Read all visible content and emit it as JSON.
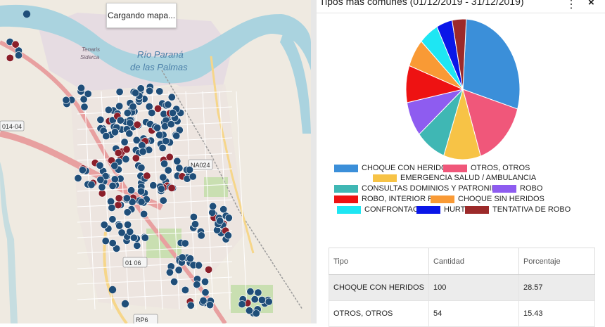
{
  "map": {
    "loading_label": "Cargando mapa...",
    "labels": {
      "river": "Río Paraná",
      "river2": "de las Palmas",
      "factory1": "Tenaris",
      "factory2": "Siderca",
      "road_left": "014-04",
      "road_mid": "NA024",
      "road_low": "01 06",
      "road_bottom": "RP6"
    },
    "colors": {
      "land": "#efeae1",
      "water": "#aad3df",
      "urban": "#e2d6e2",
      "park": "#c9dfb1",
      "road_main": "#e8a0a0",
      "marker_blue": "#1f4e79",
      "marker_red": "#8b1f2a"
    }
  },
  "panel": {
    "title": "Tipos más comunes (01/12/2019 - 31/12/2019)",
    "menu_icon": "kebab-menu-icon",
    "close_icon": "close-icon"
  },
  "chart_data": {
    "type": "pie",
    "title": "",
    "series": [
      {
        "name": "CHOQUE CON HERIDOS",
        "value": 28.57,
        "color": "#3b8fd9"
      },
      {
        "name": "OTROS, OTROS",
        "value": 15.43,
        "color": "#f0577a"
      },
      {
        "name": "EMERGENCIA SALUD / AMBULANCIA",
        "value": 10.5,
        "color": "#f7c346"
      },
      {
        "name": "CONSULTAS DOMINIOS Y PATRONIMICOS",
        "value": 8.5,
        "color": "#3fb7b4"
      },
      {
        "name": "ROBO",
        "value": 8.0,
        "color": "#8e5cf0"
      },
      {
        "name": "ROBO, INTERIOR FINCA",
        "value": 8.5,
        "color": "#ee1212"
      },
      {
        "name": "CHOQUE SIN HERIDOS",
        "value": 6.5,
        "color": "#f99a35"
      },
      {
        "name": "CONFRONTACION",
        "value": 5.5,
        "color": "#1ee6f3"
      },
      {
        "name": "HURTO",
        "value": 4.5,
        "color": "#0a16e8"
      },
      {
        "name": "TENTATIVA DE ROBO",
        "value": 4.0,
        "color": "#9c2a2a"
      }
    ]
  },
  "legend_rows": [
    [
      0,
      1
    ],
    [
      2
    ],
    [
      3,
      4
    ],
    [
      5,
      6
    ],
    [
      7,
      8,
      9
    ]
  ],
  "table": {
    "headers": [
      "Tipo",
      "Cantidad",
      "Porcentaje"
    ],
    "rows": [
      {
        "tipo": "CHOQUE CON HERIDOS",
        "cantidad": "100",
        "porcentaje": "28.57"
      },
      {
        "tipo": "OTROS, OTROS",
        "cantidad": "54",
        "porcentaje": "15.43"
      }
    ]
  }
}
